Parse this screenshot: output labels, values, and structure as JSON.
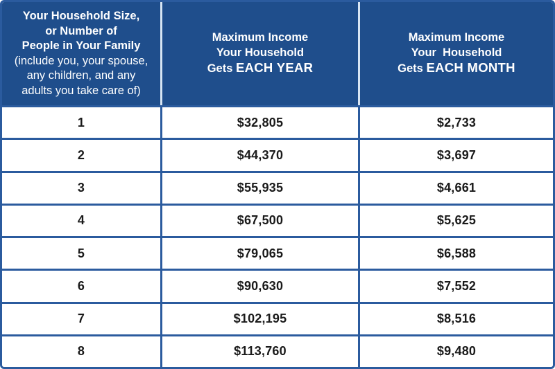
{
  "table": {
    "header": {
      "col1": {
        "title_lines": [
          "Your Household Size,",
          "or Number of",
          "People in Your Family"
        ],
        "subtitle_lines": [
          "(include you, your spouse,",
          "any children, and any",
          "adults you take care of)"
        ]
      },
      "col2": {
        "line1": "Maximum Income",
        "line2": "Your Household",
        "line3_prefix": "Gets ",
        "line3_strong": "EACH YEAR"
      },
      "col3": {
        "line1": "Maximum Income",
        "line2": "Your  Household",
        "line3_prefix": "Gets ",
        "line3_strong": "EACH MONTH"
      }
    },
    "rows": [
      {
        "size": "1",
        "year": "$32,805",
        "month": "$2,733"
      },
      {
        "size": "2",
        "year": "$44,370",
        "month": "$3,697"
      },
      {
        "size": "3",
        "year": "$55,935",
        "month": "$4,661"
      },
      {
        "size": "4",
        "year": "$67,500",
        "month": "$5,625"
      },
      {
        "size": "5",
        "year": "$79,065",
        "month": "$6,588"
      },
      {
        "size": "6",
        "year": "$90,630",
        "month": "$7,552"
      },
      {
        "size": "7",
        "year": "$102,195",
        "month": "$8,516"
      },
      {
        "size": "8",
        "year": "$113,760",
        "month": "$9,480"
      }
    ]
  },
  "colors": {
    "header_background": "#1F4E8C",
    "border_blue": "#2B5B9E",
    "header_divider": "#D8E5F3",
    "header_text": "#FFFFFF",
    "body_text": "#1A1A1A"
  },
  "chart_data": {
    "type": "table",
    "title": "",
    "columns": [
      "Your Household Size, or Number of People in Your Family (include you, your spouse, any children, and any adults you take care of)",
      "Maximum Income Your Household Gets EACH YEAR",
      "Maximum Income Your Household Gets EACH MONTH"
    ],
    "rows": [
      [
        "1",
        "$32,805",
        "$2,733"
      ],
      [
        "2",
        "$44,370",
        "$3,697"
      ],
      [
        "3",
        "$55,935",
        "$4,661"
      ],
      [
        "4",
        "$67,500",
        "$5,625"
      ],
      [
        "5",
        "$79,065",
        "$6,588"
      ],
      [
        "6",
        "$90,630",
        "$7,552"
      ],
      [
        "7",
        "$102,195",
        "$8,516"
      ],
      [
        "8",
        "$113,760",
        "$9,480"
      ]
    ]
  }
}
